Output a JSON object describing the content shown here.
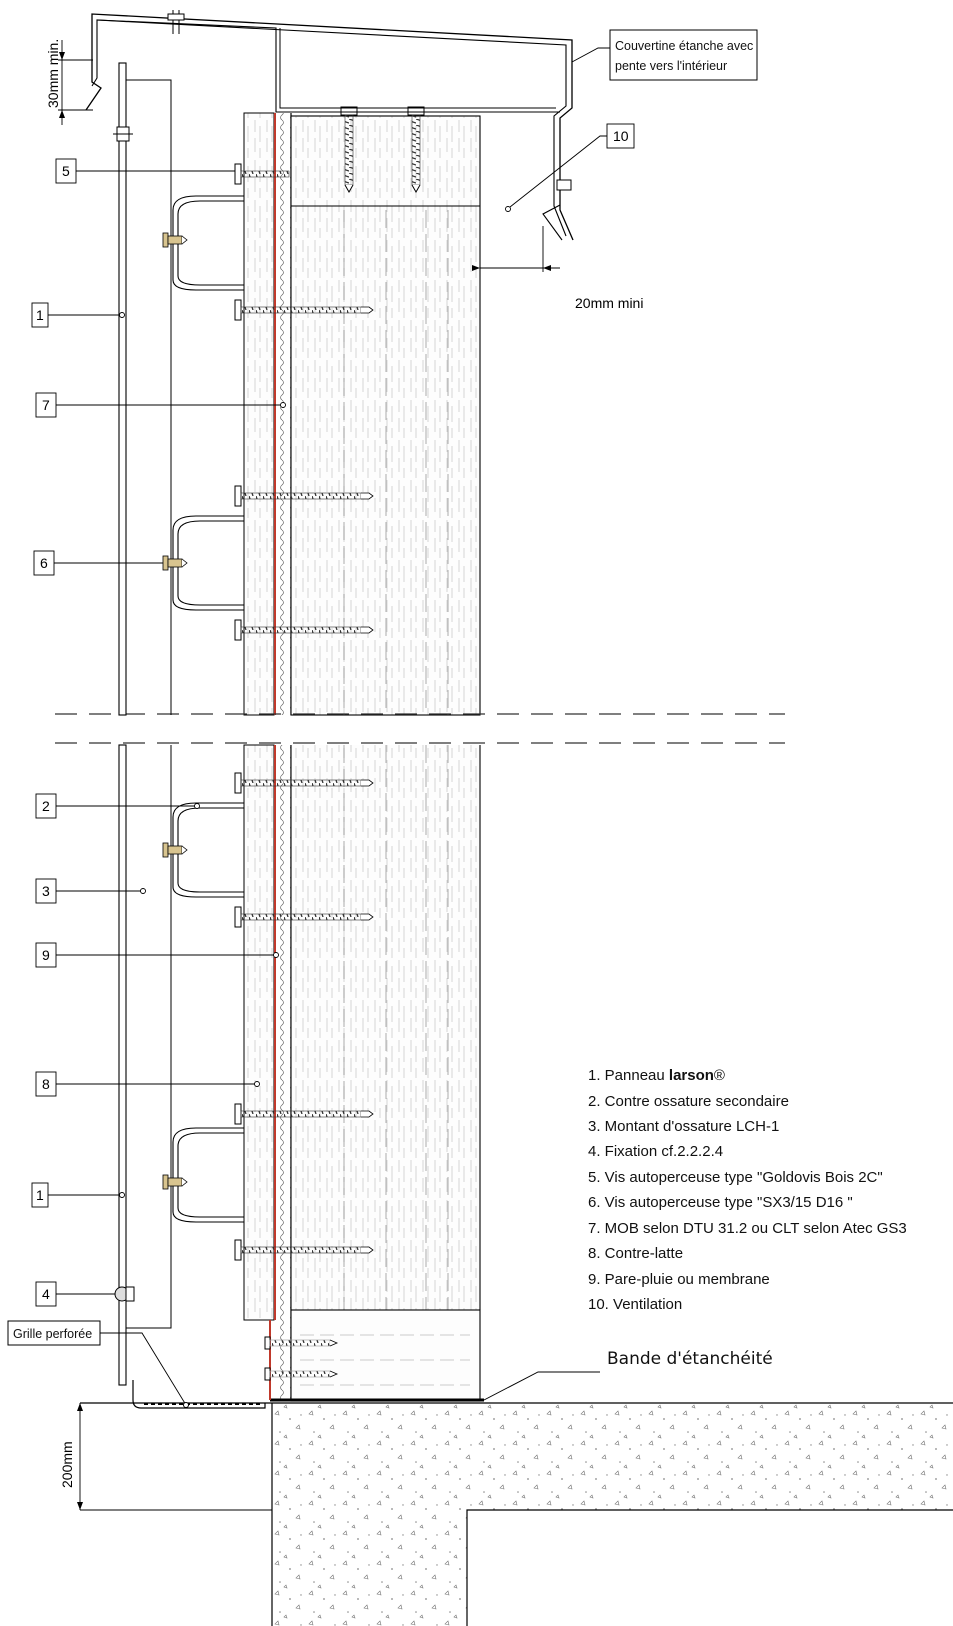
{
  "annotations": {
    "dim_top": "30mm min.",
    "dim_side": "20mm mini",
    "dim_bottom": "200mm",
    "note_cover_1": "Couvertine étanche avec",
    "note_cover_2": "pente vers l'intérieur",
    "grille": "Grille perforée",
    "bande": "Bande d'étanchéité"
  },
  "callouts": {
    "c10": "10",
    "c5": "5",
    "c1a": "1",
    "c7": "7",
    "c6": "6",
    "c2": "2",
    "c3": "3",
    "c9": "9",
    "c8": "8",
    "c1b": "1",
    "c4": "4"
  },
  "legend": {
    "item1_prefix": "1. Panneau ",
    "item1_brand": "larson",
    "item1_suffix": "®",
    "items": [
      "2. Contre ossature secondaire",
      "3. Montant d'ossature LCH-1",
      "4. Fixation cf.2.2.2.4",
      "5. Vis autoperceuse type \"Goldovis Bois 2C\"",
      "6. Vis autoperceuse type \"SX3/15 D16 \"",
      "7. MOB selon DTU 31.2 ou CLT selon Atec GS3",
      "8. Contre-latte",
      "9. Pare-pluie ou membrane",
      "10. Ventilation"
    ]
  },
  "colors": {
    "membrane": "#c0392b",
    "screw": "#444444",
    "line": "#000000"
  }
}
